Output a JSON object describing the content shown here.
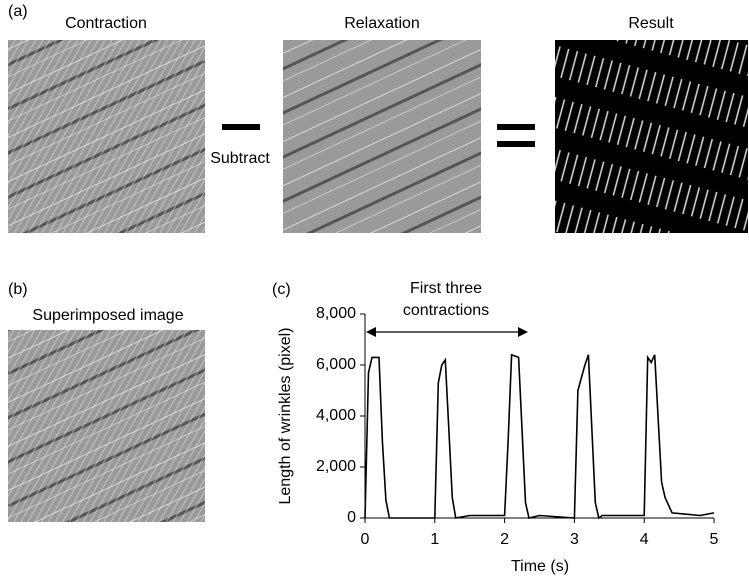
{
  "panel_labels": [
    "(a)",
    "(b)",
    "(c)"
  ],
  "images": {
    "contraction": "Contraction",
    "relaxation": "Relaxation",
    "result": "Result",
    "superimposed": "Superimposed image"
  },
  "operation": "Subtract",
  "chart_data": {
    "type": "line",
    "annotation": [
      "First three",
      "contractions"
    ],
    "xlabel": "Time (s)",
    "ylabel": "Length of wrinkles (pixel)",
    "x": [
      0,
      0.05,
      0.1,
      0.2,
      0.25,
      0.3,
      0.35,
      1.0,
      1.05,
      1.1,
      1.15,
      1.25,
      1.3,
      1.5,
      2.0,
      2.05,
      2.1,
      2.2,
      2.3,
      2.35,
      2.5,
      3.0,
      3.05,
      3.15,
      3.2,
      3.3,
      3.35,
      3.4,
      4.0,
      4.05,
      4.1,
      4.15,
      4.25,
      4.3,
      4.4,
      4.6,
      4.8,
      5.0
    ],
    "values": [
      0,
      5700,
      6300,
      6300,
      3000,
      700,
      0,
      0,
      5300,
      6000,
      6200,
      800,
      0,
      100,
      100,
      3000,
      6400,
      6300,
      600,
      0,
      100,
      0,
      5000,
      6000,
      6400,
      600,
      0,
      100,
      100,
      6300,
      6100,
      6400,
      1400,
      800,
      200,
      150,
      100,
      200
    ],
    "color": "#000000",
    "xlim": [
      0,
      5
    ],
    "xticks": [
      0,
      1,
      2,
      3,
      4,
      5
    ],
    "ylim": [
      0,
      8000
    ],
    "yticks": [
      0,
      {
        "value": 2000,
        "label": "2,000"
      },
      {
        "value": 4000,
        "label": "4,000"
      },
      {
        "value": 6000,
        "label": "6,000"
      },
      {
        "value": 8000,
        "label": "8,000"
      }
    ]
  }
}
